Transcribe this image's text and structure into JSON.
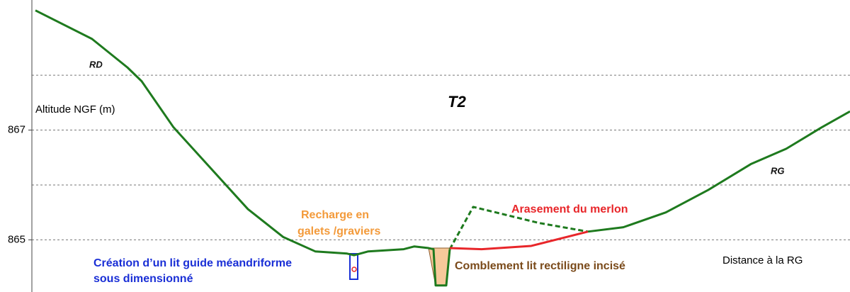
{
  "chart_data": {
    "type": "line",
    "title": "T2",
    "y_label": "Altitude NGF (m)",
    "x_label": "Distance à la RG",
    "ylim": [
      864.05,
      869.37
    ],
    "xlim": [
      0,
      1150
    ],
    "yticks": [
      865,
      867
    ],
    "grid_lines": [
      865,
      866,
      867,
      868
    ],
    "grid": true,
    "series": [
      {
        "color": "#1e7a1e",
        "dashed": false,
        "x": [
          0,
          80,
          130,
          150,
          195,
          245,
          300,
          350,
          395,
          440,
          450,
          470,
          520,
          535,
          555,
          562,
          565,
          580,
          585,
          null,
          780,
          830,
          890,
          950,
          1010,
          1060,
          1110,
          1150
        ],
        "values": [
          869.18,
          868.66,
          868.14,
          867.89,
          867.05,
          866.34,
          865.56,
          865.05,
          864.79,
          864.75,
          864.72,
          864.79,
          864.83,
          864.88,
          864.85,
          864.83,
          864.17,
          864.17,
          864.83,
          null,
          865.15,
          865.23,
          865.5,
          865.91,
          866.38,
          866.66,
          867.05,
          867.34
        ]
      },
      {
        "color": "#1e7a1e",
        "dashed": true,
        "x": [
          585,
          618,
          650,
          710,
          780
        ],
        "values": [
          864.83,
          865.6,
          865.5,
          865.31,
          865.15
        ]
      },
      {
        "color": "#e8262a",
        "dashed": false,
        "x": [
          585,
          630,
          700,
          780
        ],
        "values": [
          864.85,
          864.83,
          864.89,
          865.15
        ]
      }
    ],
    "annotations": [
      {
        "text": "RD",
        "color": "#111111"
      },
      {
        "text": "RG",
        "color": "#111111"
      },
      {
        "text": "Recharge en",
        "color": "#f39a3a"
      },
      {
        "text": "galets /graviers",
        "color": "#f39a3a"
      },
      {
        "text": "Arasement du merlon",
        "color": "#e8262a"
      },
      {
        "text": "Création d’un lit guide méandriforme",
        "color": "#1a2fd6"
      },
      {
        "text": "sous dimensionné",
        "color": "#1a2fd6"
      },
      {
        "text": "Comblement lit rectiligne incisé",
        "color": "#7a4a1a"
      }
    ]
  }
}
